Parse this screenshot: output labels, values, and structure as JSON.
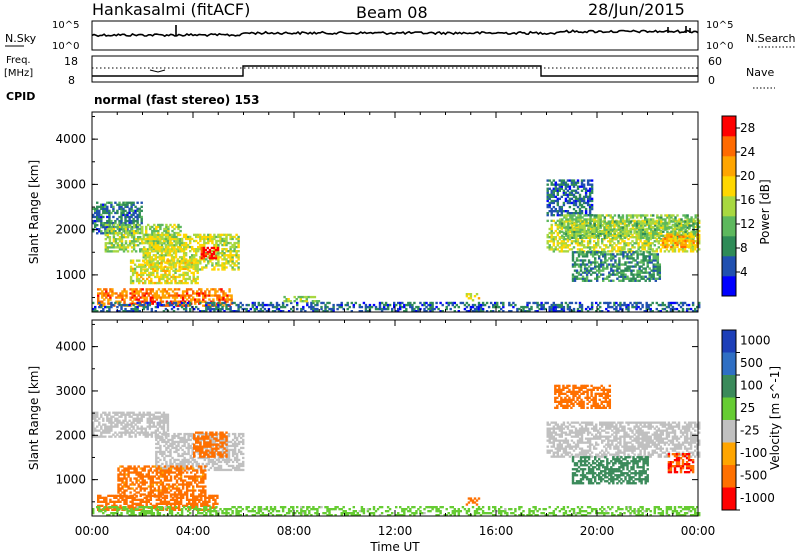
{
  "header": {
    "station": "Hankasalmi (fitACF)",
    "beam": "Beam 08",
    "date": "28/Jun/2015"
  },
  "panels": {
    "nsky_label": "N.Sky",
    "nsky_ticks": [
      "10^5",
      "10^0"
    ],
    "nsearch_label": "N.Search",
    "nsearch_ticks": [
      "10^5",
      "10^0"
    ],
    "freq_label_line1": "Freq.",
    "freq_label_line2": "[MHz]",
    "freq_ticks": [
      "18",
      "8"
    ],
    "nave_label": "Nave",
    "nave_ticks": [
      "60",
      "0"
    ],
    "cpid_label": "CPID",
    "cpid_text": "normal (fast stereo) 153"
  },
  "colors": {
    "velocity_gray": "#c0c0c0"
  },
  "chart_data": [
    {
      "type": "heatmap",
      "title": "",
      "xlabel": "Time UT",
      "ylabel": "Slant Range [km]",
      "xlim": [
        0,
        24
      ],
      "ylim": [
        180,
        4600
      ],
      "x_ticks": [
        "00:00",
        "04:00",
        "08:00",
        "12:00",
        "16:00",
        "20:00",
        "00:00"
      ],
      "y_ticks": [
        "1000",
        "2000",
        "3000",
        "4000"
      ],
      "colorbar": {
        "label": "Power [dB]",
        "ticks": [
          "4",
          "8",
          "12",
          "16",
          "20",
          "24",
          "28"
        ],
        "range": [
          0,
          30
        ],
        "colors": [
          "#0000ff",
          "#2050b0",
          "#2e8b57",
          "#5db85d",
          "#a8d840",
          "#ffd700",
          "#ffa500",
          "#ff6a00",
          "#ff0000"
        ]
      },
      "regions": [
        {
          "t": [
            0.0,
            2.0
          ],
          "range": [
            1900,
            2600
          ],
          "value": 7
        },
        {
          "t": [
            0.5,
            3.5
          ],
          "range": [
            1500,
            2100
          ],
          "value": 14
        },
        {
          "t": [
            2.0,
            5.8
          ],
          "range": [
            1100,
            1900
          ],
          "value": 16
        },
        {
          "t": [
            1.5,
            4.2
          ],
          "range": [
            800,
            1300
          ],
          "value": 17
        },
        {
          "t": [
            0.2,
            5.5
          ],
          "range": [
            300,
            700
          ],
          "value": 24
        },
        {
          "t": [
            4.3,
            5.0
          ],
          "range": [
            1350,
            1600
          ],
          "value": 28
        },
        {
          "t": [
            0.0,
            24.0
          ],
          "range": [
            180,
            380
          ],
          "value": 6
        },
        {
          "t": [
            7.5,
            9.0
          ],
          "range": [
            400,
            520
          ],
          "value": 14
        },
        {
          "t": [
            14.8,
            15.3
          ],
          "range": [
            420,
            560
          ],
          "value": 18
        },
        {
          "t": [
            18.0,
            19.8
          ],
          "range": [
            2300,
            3100
          ],
          "value": 6
        },
        {
          "t": [
            18.0,
            24.0
          ],
          "range": [
            1500,
            2200
          ],
          "value": 16
        },
        {
          "t": [
            18.5,
            24.0
          ],
          "range": [
            1800,
            2300
          ],
          "value": 13
        },
        {
          "t": [
            19.0,
            22.5
          ],
          "range": [
            850,
            1500
          ],
          "value": 9
        },
        {
          "t": [
            22.5,
            24.0
          ],
          "range": [
            1600,
            1900
          ],
          "value": 21
        }
      ]
    },
    {
      "type": "heatmap",
      "title": "",
      "xlabel": "Time UT",
      "ylabel": "Slant Range [km]",
      "xlim": [
        0,
        24
      ],
      "ylim": [
        180,
        4600
      ],
      "x_ticks": [
        "00:00",
        "04:00",
        "08:00",
        "12:00",
        "16:00",
        "20:00",
        "00:00"
      ],
      "y_ticks": [
        "1000",
        "2000",
        "3000",
        "4000"
      ],
      "colorbar": {
        "label": "Velocity [m s^-1]",
        "ticks": [
          "1000",
          "500",
          "100",
          "25",
          "-25",
          "-100",
          "-500",
          "-1000"
        ],
        "colors": [
          "#1d3fb8",
          "#2f6fc4",
          "#3a8a5a",
          "#66cc33",
          "#c0c0c0",
          "#ffa500",
          "#ff7000",
          "#ff0000"
        ]
      },
      "regions": [
        {
          "t": [
            0.0,
            3.0
          ],
          "range": [
            1950,
            2500
          ],
          "value": 0
        },
        {
          "t": [
            2.5,
            6.0
          ],
          "range": [
            1200,
            2050
          ],
          "value": 0
        },
        {
          "t": [
            1.0,
            4.5
          ],
          "range": [
            600,
            1300
          ],
          "value": -150
        },
        {
          "t": [
            4.0,
            5.3
          ],
          "range": [
            1500,
            2050
          ],
          "value": -300
        },
        {
          "t": [
            0.2,
            5.0
          ],
          "range": [
            300,
            650
          ],
          "value": -200
        },
        {
          "t": [
            0.0,
            24.0
          ],
          "range": [
            180,
            380
          ],
          "value": 40
        },
        {
          "t": [
            14.8,
            15.3
          ],
          "range": [
            420,
            560
          ],
          "value": -300
        },
        {
          "t": [
            18.0,
            24.0
          ],
          "range": [
            1500,
            2300
          ],
          "value": 0
        },
        {
          "t": [
            18.3,
            20.5
          ],
          "range": [
            2600,
            3100
          ],
          "value": -200
        },
        {
          "t": [
            19.0,
            22.0
          ],
          "range": [
            900,
            1500
          ],
          "value": 200
        },
        {
          "t": [
            22.8,
            23.8
          ],
          "range": [
            1150,
            1600
          ],
          "value": -500
        }
      ]
    }
  ]
}
